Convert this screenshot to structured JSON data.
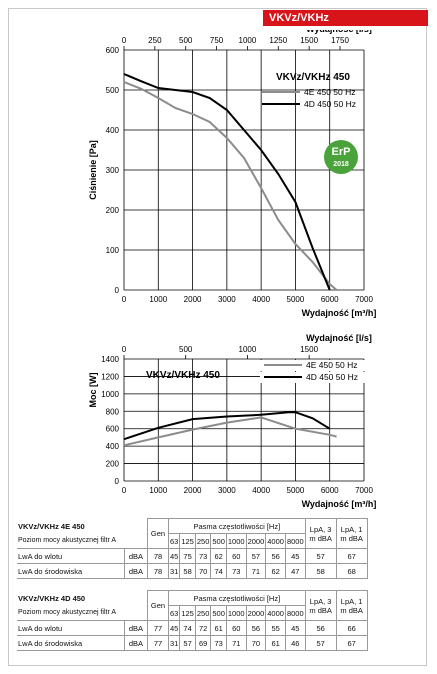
{
  "badge": "VKVz/VKHz",
  "chart_data": [
    {
      "type": "line",
      "title": "VKVz/VKHz 450",
      "xlabel": "Wydajność [m³/h]",
      "x2label": "Wydajność [l/s]",
      "ylabel": "Ciśnienie [Pa]",
      "xlim": [
        0,
        7000
      ],
      "ylim": [
        0,
        600
      ],
      "x2lim": [
        0,
        1944
      ],
      "xticks": [
        "0",
        "1000",
        "2000",
        "3000",
        "4000",
        "5000",
        "6000",
        "7000"
      ],
      "x2ticks": [
        "0",
        "250",
        "500",
        "750",
        "1000",
        "1250",
        "1500",
        "1750"
      ],
      "yticks": [
        "0",
        "100",
        "200",
        "300",
        "400",
        "500",
        "600"
      ],
      "grid": true,
      "legend": "top-right",
      "series": [
        {
          "name": "4E 450 50 Hz",
          "color": "#8c8c8c",
          "x": [
            0,
            500,
            1000,
            1500,
            2000,
            2500,
            3000,
            3500,
            4000,
            4500,
            5000,
            5500,
            6000,
            6200
          ],
          "y": [
            520,
            503,
            480,
            455,
            440,
            420,
            380,
            330,
            255,
            175,
            115,
            70,
            15,
            0
          ]
        },
        {
          "name": "4D 450 50 Hz",
          "color": "#000000",
          "x": [
            0,
            500,
            1000,
            1500,
            2000,
            2500,
            3000,
            3500,
            4000,
            4500,
            5000,
            5500,
            6000
          ],
          "y": [
            540,
            522,
            505,
            500,
            495,
            480,
            450,
            400,
            350,
            290,
            220,
            105,
            0
          ]
        }
      ],
      "badge_text": "ErP 2018"
    },
    {
      "type": "line",
      "title": "VKVz/VKHz 450",
      "xlabel": "Wydajność [m³/h]",
      "x2label": "Wydajność [l/s]",
      "ylabel": "Moc [W]",
      "xlim": [
        0,
        7000
      ],
      "ylim": [
        0,
        1400
      ],
      "x2lim": [
        0,
        1944
      ],
      "xticks": [
        "0",
        "1000",
        "2000",
        "3000",
        "4000",
        "5000",
        "6000",
        "7000"
      ],
      "x2ticks": [
        "0",
        "500",
        "1000",
        "1500"
      ],
      "yticks": [
        "0",
        "200",
        "400",
        "600",
        "800",
        "1000",
        "1200",
        "1400"
      ],
      "grid": true,
      "legend": "top-right",
      "series": [
        {
          "name": "4E 450 50 Hz",
          "color": "#8c8c8c",
          "x": [
            0,
            1000,
            2000,
            3000,
            4000,
            5000,
            6000,
            6200
          ],
          "y": [
            410,
            500,
            590,
            670,
            730,
            600,
            530,
            510
          ]
        },
        {
          "name": "4D 450 50 Hz",
          "color": "#000000",
          "x": [
            0,
            1000,
            2000,
            3000,
            4000,
            4800,
            5000,
            5500,
            6000
          ],
          "y": [
            480,
            610,
            710,
            740,
            760,
            790,
            790,
            720,
            600
          ]
        }
      ]
    }
  ],
  "tables": [
    {
      "model": "VKVz/VKHz 4E 450",
      "subtitle": "Poziom mocy akustycznej filtr A",
      "gen_label": "Gen",
      "band_label": "Pasma częstotliwości [Hz]",
      "lpa3": "LpA, 3 m dBA",
      "lpa1": "LpA, 1 m dBA",
      "unit": "dBA",
      "freqs": [
        "63",
        "125",
        "250",
        "500",
        "1000",
        "2000",
        "4000",
        "8000"
      ],
      "rows": [
        {
          "label": "LwA do wlotu",
          "unit": "dBA",
          "gen": "78",
          "bands": [
            "45",
            "75",
            "73",
            "62",
            "60",
            "57",
            "56",
            "45"
          ],
          "lpa3": "57",
          "lpa1": "67"
        },
        {
          "label": "LwA do środowiska",
          "unit": "dBA",
          "gen": "78",
          "bands": [
            "31",
            "58",
            "70",
            "74",
            "73",
            "71",
            "62",
            "47"
          ],
          "lpa3": "58",
          "lpa1": "68"
        }
      ]
    },
    {
      "model": "VKVz/VKHz 4D 450",
      "subtitle": "Poziom mocy akustycznej filtr A",
      "gen_label": "Gen",
      "band_label": "Pasma częstotliwości [Hz]",
      "lpa3": "LpA, 3 m dBA",
      "lpa1": "LpA, 1 m dBA",
      "unit": "dBA",
      "freqs": [
        "63",
        "125",
        "250",
        "500",
        "1000",
        "2000",
        "4000",
        "8000"
      ],
      "rows": [
        {
          "label": "LwA do wlotu",
          "unit": "dBA",
          "gen": "77",
          "bands": [
            "45",
            "74",
            "72",
            "61",
            "60",
            "56",
            "55",
            "45"
          ],
          "lpa3": "56",
          "lpa1": "66"
        },
        {
          "label": "LwA do środowiska",
          "unit": "dBA",
          "gen": "77",
          "bands": [
            "31",
            "57",
            "69",
            "73",
            "71",
            "70",
            "61",
            "46"
          ],
          "lpa3": "57",
          "lpa1": "67"
        }
      ]
    }
  ]
}
